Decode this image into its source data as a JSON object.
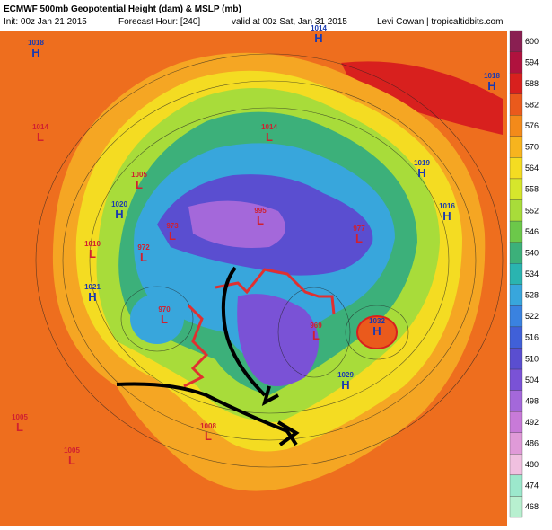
{
  "header": {
    "title": "ECMWF 500mb Geopotential Height (dam) & MSLP (mb)",
    "init": "Init: 00z Jan 21 2015",
    "forecast_hour": "Forecast Hour: [240]",
    "valid": "valid at 00z Sat, Jan 31 2015",
    "credit": "Levi Cowan | tropicaltidbits.com"
  },
  "colorbar": {
    "labels": [
      600,
      594,
      588,
      582,
      576,
      570,
      564,
      558,
      552,
      546,
      540,
      534,
      528,
      522,
      516,
      510,
      504,
      498,
      492,
      486,
      480,
      474,
      468
    ],
    "colors": [
      "#8a1f52",
      "#b0123e",
      "#d8201e",
      "#ea5a1c",
      "#f38a1a",
      "#f7b41e",
      "#f4dc22",
      "#d6e62c",
      "#a8dc3a",
      "#6cc84a",
      "#3cb07a",
      "#2ab4b0",
      "#38a6dc",
      "#3a82e0",
      "#4060d8",
      "#5a4ed0",
      "#7a52d6",
      "#a468da",
      "#c87ad8",
      "#e09ad8",
      "#f0c0e0",
      "#9ce8cc",
      "#b8f0d0"
    ]
  },
  "pressure_centers": [
    {
      "letter": "H",
      "value": "1018"
    },
    {
      "letter": "H",
      "value": "1014"
    },
    {
      "letter": "L",
      "value": "1014"
    },
    {
      "letter": "L",
      "value": "1005"
    },
    {
      "letter": "H",
      "value": "1020"
    },
    {
      "letter": "L",
      "value": "1010"
    },
    {
      "letter": "H",
      "value": "1021"
    },
    {
      "letter": "L",
      "value": "973"
    },
    {
      "letter": "L",
      "value": "972"
    },
    {
      "letter": "L",
      "value": "970"
    },
    {
      "letter": "L",
      "value": "969"
    },
    {
      "letter": "H",
      "value": "1032"
    },
    {
      "letter": "H",
      "value": "1029"
    },
    {
      "letter": "L",
      "value": "1005"
    },
    {
      "letter": "L",
      "value": "1005"
    },
    {
      "letter": "L",
      "value": "1008"
    },
    {
      "letter": "H",
      "value": "1016"
    },
    {
      "letter": "H",
      "value": "1019"
    },
    {
      "letter": "H",
      "value": "1018"
    },
    {
      "letter": "L",
      "value": "977"
    },
    {
      "letter": "L",
      "value": "995"
    },
    {
      "letter": "L",
      "value": "1014"
    }
  ]
}
